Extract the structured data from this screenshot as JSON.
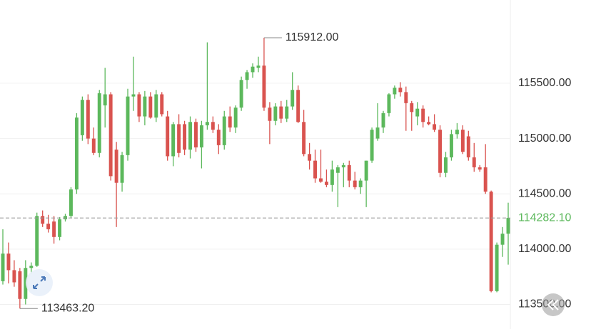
{
  "chart_data": {
    "type": "candlestick",
    "ohlc": [
      [
        113710,
        114180,
        113680,
        113960
      ],
      [
        113960,
        114060,
        113690,
        113810
      ],
      [
        113810,
        113900,
        113660,
        113700
      ],
      [
        113800,
        113830,
        113463.2,
        113550
      ],
      [
        113550,
        113900,
        113500,
        113830
      ],
      [
        113830,
        113880,
        113780,
        113850
      ],
      [
        113850,
        114330,
        113840,
        114300
      ],
      [
        114300,
        114350,
        114200,
        114230
      ],
      [
        114230,
        114310,
        114150,
        114180
      ],
      [
        114250,
        114300,
        114050,
        114110
      ],
      [
        114110,
        114290,
        114080,
        114270
      ],
      [
        114270,
        114320,
        114250,
        114300
      ],
      [
        114300,
        114560,
        114280,
        114540
      ],
      [
        114540,
        115230,
        114500,
        115190
      ],
      [
        115030,
        115380,
        114980,
        115350
      ],
      [
        115350,
        115400,
        114950,
        115000
      ],
      [
        115000,
        115100,
        114850,
        114870
      ],
      [
        114870,
        115440,
        114830,
        115410
      ],
      [
        115300,
        115640,
        115100,
        115400
      ],
      [
        115400,
        115420,
        114620,
        114660
      ],
      [
        114900,
        114970,
        114200,
        114600
      ],
      [
        114600,
        114880,
        114520,
        114850
      ],
      [
        114850,
        115450,
        114800,
        115380
      ],
      [
        115380,
        115740,
        115250,
        115400
      ],
      [
        115400,
        115420,
        115150,
        115200
      ],
      [
        115200,
        115430,
        115120,
        115380
      ],
      [
        115380,
        115420,
        115180,
        115190
      ],
      [
        115190,
        115440,
        115150,
        115400
      ],
      [
        115400,
        115420,
        115200,
        115220
      ],
      [
        115200,
        115250,
        114800,
        114840
      ],
      [
        114840,
        115150,
        114750,
        115130
      ],
      [
        115130,
        115220,
        114830,
        114870
      ],
      [
        115130,
        115160,
        114850,
        114900
      ],
      [
        114900,
        115200,
        114820,
        115150
      ],
      [
        115150,
        115180,
        114880,
        114920
      ],
      [
        114920,
        115160,
        114730,
        115120
      ],
      [
        115120,
        115870,
        115080,
        115150
      ],
      [
        115150,
        115200,
        115050,
        115080
      ],
      [
        115080,
        115130,
        114860,
        114940
      ],
      [
        114940,
        115250,
        114900,
        115200
      ],
      [
        115200,
        115290,
        115060,
        115100
      ],
      [
        115100,
        115300,
        115050,
        115280
      ],
      [
        115280,
        115560,
        115250,
        115530
      ],
      [
        115530,
        115620,
        115450,
        115600
      ],
      [
        115600,
        115680,
        115550,
        115650
      ],
      [
        115640,
        115740,
        115600,
        115660
      ],
      [
        115660,
        115912,
        115250,
        115280
      ],
      [
        115280,
        115330,
        114950,
        115160
      ],
      [
        115160,
        115320,
        115120,
        115290
      ],
      [
        115290,
        115340,
        115140,
        115180
      ],
      [
        115180,
        115350,
        115150,
        115290
      ],
      [
        115290,
        115600,
        115260,
        115440
      ],
      [
        115440,
        115480,
        115140,
        115150
      ],
      [
        115150,
        115260,
        114840,
        114860
      ],
      [
        114860,
        114960,
        114720,
        114800
      ],
      [
        114800,
        114900,
        114600,
        114640
      ],
      [
        114640,
        114900,
        114600,
        114610
      ],
      [
        114610,
        114720,
        114560,
        114580
      ],
      [
        114580,
        114800,
        114520,
        114720
      ],
      [
        114690,
        114760,
        114380,
        114740
      ],
      [
        114740,
        114780,
        114560,
        114760
      ],
      [
        114760,
        114800,
        114560,
        114620
      ],
      [
        114620,
        114700,
        114540,
        114560
      ],
      [
        114560,
        114640,
        114500,
        114620
      ],
      [
        114620,
        114800,
        114380,
        114800
      ],
      [
        114800,
        115100,
        114780,
        115080
      ],
      [
        115000,
        115320,
        114980,
        115100
      ],
      [
        115100,
        115250,
        115050,
        115230
      ],
      [
        115230,
        115410,
        115200,
        115400
      ],
      [
        115400,
        115480,
        115360,
        115460
      ],
      [
        115460,
        115510,
        115380,
        115420
      ],
      [
        115420,
        115470,
        115070,
        115320
      ],
      [
        115320,
        115340,
        115070,
        115240
      ],
      [
        115200,
        115330,
        115120,
        115270
      ],
      [
        115270,
        115300,
        115100,
        115150
      ],
      [
        115150,
        115200,
        115120,
        115130
      ],
      [
        115130,
        115220,
        115060,
        115080
      ],
      [
        115080,
        115120,
        114650,
        114690
      ],
      [
        114690,
        114880,
        114650,
        114830
      ],
      [
        114830,
        115080,
        114800,
        115040
      ],
      [
        115040,
        115140,
        115000,
        115080
      ],
      [
        115080,
        115120,
        114860,
        114880
      ],
      [
        115020,
        115070,
        114800,
        114830
      ],
      [
        114830,
        114960,
        114700,
        114740
      ],
      [
        114740,
        114760,
        114700,
        114720
      ],
      [
        114740,
        114950,
        114500,
        114520
      ],
      [
        114520,
        114530,
        113610,
        113620
      ],
      [
        113620,
        114060,
        113610,
        114040
      ],
      [
        114040,
        114200,
        113930,
        114140
      ],
      [
        114140,
        114420,
        113860,
        114282.1
      ]
    ],
    "up_color": "#5cb85c",
    "down_color": "#d9534f",
    "ylim": [
      113278,
      116253
    ],
    "yticks": [
      {
        "value": 113500,
        "label": "113500.00"
      },
      {
        "value": 114000,
        "label": "114000.00"
      },
      {
        "value": 114500,
        "label": "114500.00"
      },
      {
        "value": 115000,
        "label": "115000.00"
      },
      {
        "value": 115500,
        "label": "115500.00"
      }
    ],
    "grid": true,
    "annotations": [
      {
        "value": 115912,
        "label": "115912.00"
      },
      {
        "value": 113463.2,
        "label": "113463.20"
      }
    ],
    "last_price": {
      "value": 114282.1,
      "label": "114282.10"
    }
  }
}
